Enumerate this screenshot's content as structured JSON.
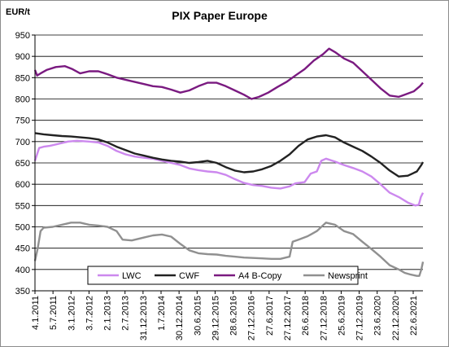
{
  "chart_data": {
    "type": "line",
    "title": "PIX Paper Europe",
    "ylabel": "EUR/t",
    "xlabel": "",
    "ylim": [
      350,
      950
    ],
    "yticks": [
      350,
      400,
      450,
      500,
      550,
      600,
      650,
      700,
      750,
      800,
      850,
      900,
      950
    ],
    "grid": "horizontal",
    "legend_position": "bottom",
    "x_tick_labels": [
      "4.1.2011",
      "5.7.2011",
      "3.1.2012",
      "3.7.2012",
      "2.1.2013",
      "2.7.2013",
      "31.12.2013",
      "1.7.2014",
      "30.12.2014",
      "30.6.2015",
      "29.12.2015",
      "28.6.2016",
      "27.12.2016",
      "27.6.2017",
      "27.12.2017",
      "26.6.2018",
      "27.12.2018",
      "25.6.2019",
      "27.12.2019",
      "23.6.2020",
      "22.12.2020",
      "22.6.2021"
    ],
    "x_range": [
      "2011-01-04",
      "2021-08-31"
    ],
    "series": [
      {
        "name": "LWC",
        "color": "#cc88ee",
        "points": [
          [
            "2011-01-04",
            655
          ],
          [
            "2011-02-15",
            685
          ],
          [
            "2011-04-01",
            688
          ],
          [
            "2011-06-01",
            690
          ],
          [
            "2011-09-01",
            695
          ],
          [
            "2011-12-01",
            700
          ],
          [
            "2012-03-01",
            702
          ],
          [
            "2012-07-01",
            700
          ],
          [
            "2012-10-01",
            698
          ],
          [
            "2013-01-01",
            690
          ],
          [
            "2013-04-01",
            678
          ],
          [
            "2013-07-01",
            670
          ],
          [
            "2013-10-01",
            665
          ],
          [
            "2014-01-01",
            662
          ],
          [
            "2014-04-01",
            660
          ],
          [
            "2014-07-01",
            655
          ],
          [
            "2014-10-01",
            650
          ],
          [
            "2015-01-01",
            645
          ],
          [
            "2015-04-01",
            637
          ],
          [
            "2015-07-01",
            633
          ],
          [
            "2015-10-01",
            630
          ],
          [
            "2016-01-01",
            628
          ],
          [
            "2016-04-01",
            622
          ],
          [
            "2016-07-01",
            612
          ],
          [
            "2016-10-01",
            603
          ],
          [
            "2017-01-01",
            598
          ],
          [
            "2017-04-01",
            596
          ],
          [
            "2017-07-01",
            592
          ],
          [
            "2017-10-01",
            590
          ],
          [
            "2018-01-01",
            595
          ],
          [
            "2018-03-01",
            602
          ],
          [
            "2018-06-01",
            605
          ],
          [
            "2018-08-01",
            625
          ],
          [
            "2018-10-01",
            630
          ],
          [
            "2018-11-15",
            655
          ],
          [
            "2019-01-01",
            660
          ],
          [
            "2019-04-01",
            653
          ],
          [
            "2019-07-01",
            645
          ],
          [
            "2019-10-01",
            638
          ],
          [
            "2020-01-01",
            630
          ],
          [
            "2020-04-01",
            618
          ],
          [
            "2020-07-01",
            600
          ],
          [
            "2020-10-01",
            580
          ],
          [
            "2021-01-01",
            570
          ],
          [
            "2021-04-01",
            557
          ],
          [
            "2021-06-15",
            550
          ],
          [
            "2021-07-20",
            552
          ],
          [
            "2021-08-10",
            570
          ],
          [
            "2021-08-31",
            580
          ]
        ]
      },
      {
        "name": "CWF",
        "color": "#222222",
        "points": [
          [
            "2011-01-04",
            720
          ],
          [
            "2011-04-01",
            717
          ],
          [
            "2011-07-01",
            715
          ],
          [
            "2011-10-01",
            713
          ],
          [
            "2012-01-01",
            712
          ],
          [
            "2012-04-01",
            710
          ],
          [
            "2012-07-01",
            708
          ],
          [
            "2012-10-01",
            705
          ],
          [
            "2013-01-01",
            698
          ],
          [
            "2013-04-01",
            688
          ],
          [
            "2013-07-01",
            680
          ],
          [
            "2013-10-01",
            672
          ],
          [
            "2014-01-01",
            667
          ],
          [
            "2014-04-01",
            662
          ],
          [
            "2014-07-01",
            658
          ],
          [
            "2014-10-01",
            655
          ],
          [
            "2015-01-01",
            653
          ],
          [
            "2015-04-01",
            650
          ],
          [
            "2015-07-01",
            652
          ],
          [
            "2015-10-01",
            655
          ],
          [
            "2016-01-01",
            650
          ],
          [
            "2016-04-01",
            640
          ],
          [
            "2016-07-01",
            632
          ],
          [
            "2016-10-01",
            628
          ],
          [
            "2017-01-01",
            630
          ],
          [
            "2017-04-01",
            635
          ],
          [
            "2017-07-01",
            643
          ],
          [
            "2017-10-01",
            655
          ],
          [
            "2018-01-01",
            670
          ],
          [
            "2018-04-01",
            690
          ],
          [
            "2018-07-01",
            705
          ],
          [
            "2018-10-01",
            712
          ],
          [
            "2019-01-01",
            715
          ],
          [
            "2019-04-01",
            710
          ],
          [
            "2019-07-01",
            698
          ],
          [
            "2019-10-01",
            688
          ],
          [
            "2020-01-01",
            678
          ],
          [
            "2020-04-01",
            665
          ],
          [
            "2020-07-01",
            650
          ],
          [
            "2020-10-01",
            632
          ],
          [
            "2021-01-01",
            618
          ],
          [
            "2021-04-01",
            620
          ],
          [
            "2021-07-01",
            630
          ],
          [
            "2021-08-15",
            645
          ],
          [
            "2021-08-31",
            652
          ]
        ]
      },
      {
        "name": "A4 B-Copy",
        "color": "#7a1a80",
        "points": [
          [
            "2011-01-04",
            868
          ],
          [
            "2011-01-25",
            855
          ],
          [
            "2011-03-01",
            860
          ],
          [
            "2011-05-01",
            868
          ],
          [
            "2011-08-01",
            875
          ],
          [
            "2011-11-01",
            877
          ],
          [
            "2012-01-15",
            870
          ],
          [
            "2012-04-01",
            860
          ],
          [
            "2012-07-01",
            865
          ],
          [
            "2012-10-01",
            865
          ],
          [
            "2013-01-01",
            858
          ],
          [
            "2013-04-01",
            850
          ],
          [
            "2013-07-01",
            845
          ],
          [
            "2013-10-01",
            840
          ],
          [
            "2014-01-01",
            835
          ],
          [
            "2014-04-01",
            830
          ],
          [
            "2014-07-01",
            828
          ],
          [
            "2014-10-01",
            822
          ],
          [
            "2015-01-01",
            815
          ],
          [
            "2015-04-01",
            820
          ],
          [
            "2015-07-01",
            830
          ],
          [
            "2015-10-01",
            838
          ],
          [
            "2016-01-01",
            838
          ],
          [
            "2016-04-01",
            830
          ],
          [
            "2016-07-01",
            820
          ],
          [
            "2016-10-01",
            810
          ],
          [
            "2016-12-15",
            800
          ],
          [
            "2017-03-01",
            805
          ],
          [
            "2017-06-01",
            815
          ],
          [
            "2017-09-01",
            828
          ],
          [
            "2017-12-01",
            840
          ],
          [
            "2018-03-01",
            855
          ],
          [
            "2018-06-01",
            870
          ],
          [
            "2018-09-01",
            890
          ],
          [
            "2018-12-01",
            905
          ],
          [
            "2019-02-01",
            918
          ],
          [
            "2019-04-01",
            910
          ],
          [
            "2019-07-01",
            895
          ],
          [
            "2019-10-01",
            885
          ],
          [
            "2020-01-01",
            865
          ],
          [
            "2020-04-01",
            845
          ],
          [
            "2020-07-01",
            825
          ],
          [
            "2020-10-01",
            808
          ],
          [
            "2021-01-01",
            805
          ],
          [
            "2021-03-01",
            810
          ],
          [
            "2021-06-01",
            818
          ],
          [
            "2021-08-01",
            830
          ],
          [
            "2021-08-31",
            838
          ]
        ]
      },
      {
        "name": "Newsprint",
        "color": "#909090",
        "points": [
          [
            "2011-01-04",
            420
          ],
          [
            "2011-02-01",
            450
          ],
          [
            "2011-03-01",
            490
          ],
          [
            "2011-04-01",
            498
          ],
          [
            "2011-07-01",
            500
          ],
          [
            "2011-10-01",
            505
          ],
          [
            "2012-01-01",
            510
          ],
          [
            "2012-04-01",
            510
          ],
          [
            "2012-07-01",
            505
          ],
          [
            "2012-10-01",
            503
          ],
          [
            "2013-01-01",
            500
          ],
          [
            "2013-04-01",
            490
          ],
          [
            "2013-06-01",
            470
          ],
          [
            "2013-09-01",
            468
          ],
          [
            "2014-01-01",
            475
          ],
          [
            "2014-04-01",
            480
          ],
          [
            "2014-07-01",
            482
          ],
          [
            "2014-10-01",
            477
          ],
          [
            "2015-01-01",
            460
          ],
          [
            "2015-04-01",
            445
          ],
          [
            "2015-07-01",
            438
          ],
          [
            "2015-10-01",
            436
          ],
          [
            "2016-01-01",
            435
          ],
          [
            "2016-04-01",
            432
          ],
          [
            "2016-07-01",
            430
          ],
          [
            "2016-10-01",
            428
          ],
          [
            "2017-01-01",
            427
          ],
          [
            "2017-04-01",
            426
          ],
          [
            "2017-07-01",
            425
          ],
          [
            "2017-10-01",
            425
          ],
          [
            "2018-01-01",
            430
          ],
          [
            "2018-02-01",
            465
          ],
          [
            "2018-04-01",
            470
          ],
          [
            "2018-07-01",
            478
          ],
          [
            "2018-10-01",
            490
          ],
          [
            "2019-01-01",
            510
          ],
          [
            "2019-04-01",
            505
          ],
          [
            "2019-07-01",
            490
          ],
          [
            "2019-10-01",
            483
          ],
          [
            "2020-01-01",
            465
          ],
          [
            "2020-04-01",
            448
          ],
          [
            "2020-07-01",
            430
          ],
          [
            "2020-10-01",
            410
          ],
          [
            "2021-01-01",
            400
          ],
          [
            "2021-03-01",
            392
          ],
          [
            "2021-05-01",
            388
          ],
          [
            "2021-07-01",
            385
          ],
          [
            "2021-07-25",
            385
          ],
          [
            "2021-08-15",
            400
          ],
          [
            "2021-08-31",
            418
          ]
        ]
      }
    ]
  }
}
